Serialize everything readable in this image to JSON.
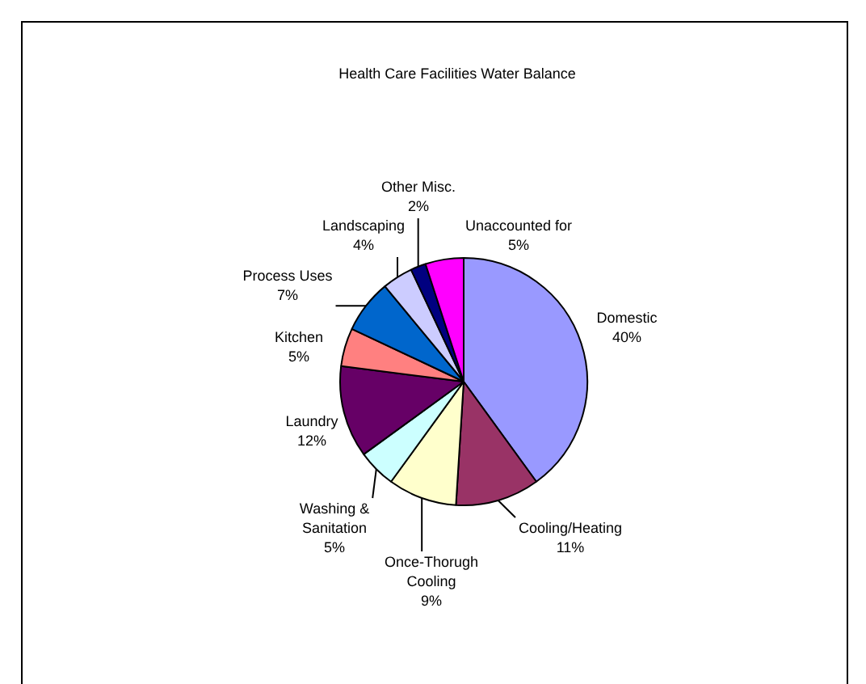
{
  "chart_data": {
    "type": "pie",
    "title": "Health Care Facilities Water Balance",
    "categories": [
      "Domestic",
      "Cooling/Heating",
      "Once-Thorugh Cooling",
      "Washing & Sanitation",
      "Laundry",
      "Kitchen",
      "Process Uses",
      "Landscaping",
      "Other Misc.",
      "Unaccounted for"
    ],
    "values": [
      40,
      11,
      9,
      5,
      12,
      5,
      7,
      4,
      2,
      5
    ],
    "value_labels": [
      "40%",
      "11%",
      "9%",
      "5%",
      "12%",
      "5%",
      "7%",
      "4%",
      "2%",
      "5%"
    ],
    "colors": [
      "#9999ff",
      "#993366",
      "#ffffcc",
      "#ccffff",
      "#660066",
      "#ff8080",
      "#0066cc",
      "#ccccff",
      "#000080",
      "#ff00ff"
    ],
    "legend": false
  }
}
